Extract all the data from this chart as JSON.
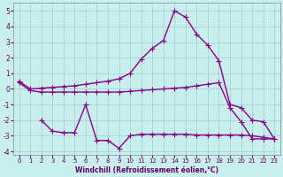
{
  "title": "",
  "xlabel": "Windchill (Refroidissement éolien,°C)",
  "ylabel": "",
  "bg_color": "#c8eeee",
  "grid_color": "#a8d8d8",
  "line_color": "#880088",
  "xlim": [
    -0.5,
    23.5
  ],
  "ylim": [
    -4.2,
    5.5
  ],
  "yticks": [
    -4,
    -3,
    -2,
    -1,
    0,
    1,
    2,
    3,
    4,
    5
  ],
  "xticks": [
    0,
    1,
    2,
    3,
    4,
    5,
    6,
    7,
    8,
    9,
    10,
    11,
    12,
    13,
    14,
    15,
    16,
    17,
    18,
    19,
    20,
    21,
    22,
    23
  ],
  "line1_x": [
    0,
    1,
    2,
    3,
    4,
    5,
    6,
    7,
    8,
    9,
    10,
    11,
    12,
    13,
    14,
    15,
    16,
    17,
    18,
    19,
    20,
    21,
    22,
    23
  ],
  "line1_y": [
    0.5,
    0.0,
    0.05,
    0.1,
    0.15,
    0.2,
    0.3,
    0.4,
    0.5,
    0.65,
    1.0,
    1.9,
    2.6,
    3.1,
    5.0,
    4.6,
    3.5,
    2.8,
    1.8,
    -1.0,
    -1.2,
    -2.0,
    -2.1,
    -3.2
  ],
  "line2_x": [
    0,
    1,
    2,
    3,
    4,
    5,
    6,
    7,
    8,
    9,
    10,
    11,
    12,
    13,
    14,
    15,
    16,
    17,
    18,
    19,
    20,
    21,
    22,
    23
  ],
  "line2_y": [
    0.4,
    -0.1,
    -0.2,
    -0.2,
    -0.2,
    -0.2,
    -0.2,
    -0.2,
    -0.2,
    -0.2,
    -0.15,
    -0.1,
    -0.05,
    0.0,
    0.05,
    0.1,
    0.2,
    0.3,
    0.4,
    -1.2,
    -2.1,
    -3.2,
    -3.2,
    -3.2
  ],
  "line3_x": [
    2,
    3,
    4,
    5,
    6,
    7,
    8,
    9,
    10,
    11,
    12,
    13,
    14,
    15,
    16,
    17,
    18,
    19,
    20,
    21,
    22,
    23
  ],
  "line3_y": [
    -2.0,
    -2.7,
    -2.8,
    -2.8,
    -1.0,
    -3.3,
    -3.3,
    -3.8,
    -3.0,
    -2.9,
    -2.9,
    -2.9,
    -2.9,
    -2.9,
    -2.95,
    -2.95,
    -2.95,
    -2.95,
    -2.95,
    -3.0,
    -3.1,
    -3.2
  ],
  "marker": "+",
  "markersize": 4,
  "linewidth": 1.0
}
